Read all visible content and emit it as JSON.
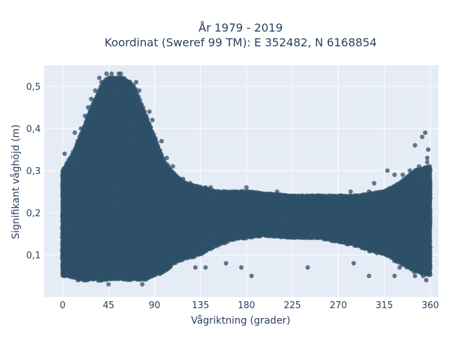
{
  "chart_data": {
    "type": "scatter",
    "title_line1": "År 1979 - 2019",
    "title_line2": "Koordinat (Sweref 99 TM): E 352482, N 6168854",
    "xlabel": "Vågriktning (grader)",
    "ylabel": "Signifikant våghöjd (m)",
    "xlim": [
      -18,
      368
    ],
    "ylim": [
      0.0,
      0.55
    ],
    "x_ticks": [
      0,
      45,
      90,
      135,
      180,
      225,
      270,
      315,
      360
    ],
    "x_tick_labels": [
      "0",
      "45",
      "90",
      "135",
      "180",
      "225",
      "270",
      "315",
      "360"
    ],
    "y_ticks": [
      0.1,
      0.2,
      0.3,
      0.4,
      0.5
    ],
    "y_tick_labels": [
      "0,1",
      "0,2",
      "0,3",
      "0,4",
      "0,5"
    ],
    "grid": true,
    "legend": "none",
    "colors": {
      "marker": "#2e5068",
      "plot_bg": "#e5ecf6",
      "grid": "#ffffff",
      "text": "#2a3f5f"
    },
    "envelope": {
      "direction": [
        0,
        10,
        20,
        30,
        40,
        45,
        50,
        55,
        60,
        70,
        80,
        90,
        100,
        110,
        120,
        135,
        150,
        165,
        180,
        200,
        225,
        250,
        270,
        290,
        300,
        315,
        330,
        345,
        360
      ],
      "upper_m": [
        0.3,
        0.34,
        0.4,
        0.46,
        0.51,
        0.52,
        0.52,
        0.52,
        0.52,
        0.5,
        0.44,
        0.38,
        0.32,
        0.29,
        0.27,
        0.26,
        0.25,
        0.25,
        0.25,
        0.245,
        0.24,
        0.24,
        0.24,
        0.24,
        0.245,
        0.25,
        0.27,
        0.3,
        0.31
      ],
      "lower_m": [
        0.05,
        0.045,
        0.04,
        0.04,
        0.04,
        0.04,
        0.04,
        0.04,
        0.04,
        0.04,
        0.04,
        0.05,
        0.06,
        0.08,
        0.09,
        0.1,
        0.12,
        0.135,
        0.14,
        0.145,
        0.14,
        0.14,
        0.13,
        0.12,
        0.11,
        0.1,
        0.08,
        0.06,
        0.05
      ]
    },
    "outliers": [
      {
        "x": 2,
        "y": 0.34
      },
      {
        "x": 6,
        "y": 0.32
      },
      {
        "x": 12,
        "y": 0.39
      },
      {
        "x": 18,
        "y": 0.4
      },
      {
        "x": 22,
        "y": 0.43
      },
      {
        "x": 25,
        "y": 0.45
      },
      {
        "x": 28,
        "y": 0.47
      },
      {
        "x": 32,
        "y": 0.49
      },
      {
        "x": 36,
        "y": 0.52
      },
      {
        "x": 38,
        "y": 0.51
      },
      {
        "x": 43,
        "y": 0.53
      },
      {
        "x": 48,
        "y": 0.53
      },
      {
        "x": 55,
        "y": 0.53
      },
      {
        "x": 57,
        "y": 0.53
      },
      {
        "x": 61,
        "y": 0.51
      },
      {
        "x": 66,
        "y": 0.51
      },
      {
        "x": 72,
        "y": 0.51
      },
      {
        "x": 75,
        "y": 0.49
      },
      {
        "x": 85,
        "y": 0.44
      },
      {
        "x": 88,
        "y": 0.42
      },
      {
        "x": 97,
        "y": 0.37
      },
      {
        "x": 102,
        "y": 0.33
      },
      {
        "x": 108,
        "y": 0.31
      },
      {
        "x": 110,
        "y": 0.29
      },
      {
        "x": 118,
        "y": 0.28
      },
      {
        "x": 125,
        "y": 0.27
      },
      {
        "x": 140,
        "y": 0.26
      },
      {
        "x": 145,
        "y": 0.26
      },
      {
        "x": 180,
        "y": 0.26
      },
      {
        "x": 210,
        "y": 0.25
      },
      {
        "x": 245,
        "y": 0.24
      },
      {
        "x": 282,
        "y": 0.25
      },
      {
        "x": 300,
        "y": 0.25
      },
      {
        "x": 305,
        "y": 0.27
      },
      {
        "x": 318,
        "y": 0.3
      },
      {
        "x": 325,
        "y": 0.29
      },
      {
        "x": 333,
        "y": 0.29
      },
      {
        "x": 340,
        "y": 0.3
      },
      {
        "x": 345,
        "y": 0.36
      },
      {
        "x": 349,
        "y": 0.31
      },
      {
        "x": 352,
        "y": 0.38
      },
      {
        "x": 355,
        "y": 0.39
      },
      {
        "x": 357,
        "y": 0.33
      },
      {
        "x": 358,
        "y": 0.35
      },
      {
        "x": 357,
        "y": 0.32
      },
      {
        "x": 356,
        "y": 0.04
      },
      {
        "x": 353,
        "y": 0.05
      },
      {
        "x": 345,
        "y": 0.05
      },
      {
        "x": 325,
        "y": 0.05
      },
      {
        "x": 330,
        "y": 0.07
      },
      {
        "x": 300,
        "y": 0.05
      },
      {
        "x": 285,
        "y": 0.08
      },
      {
        "x": 240,
        "y": 0.07
      },
      {
        "x": 185,
        "y": 0.05
      },
      {
        "x": 175,
        "y": 0.07
      },
      {
        "x": 160,
        "y": 0.08
      },
      {
        "x": 140,
        "y": 0.07
      },
      {
        "x": 130,
        "y": 0.07
      },
      {
        "x": 45,
        "y": 0.03
      },
      {
        "x": 78,
        "y": 0.03
      },
      {
        "x": 22,
        "y": 0.04
      },
      {
        "x": 15,
        "y": 0.04
      },
      {
        "x": 2,
        "y": 0.05
      }
    ]
  }
}
